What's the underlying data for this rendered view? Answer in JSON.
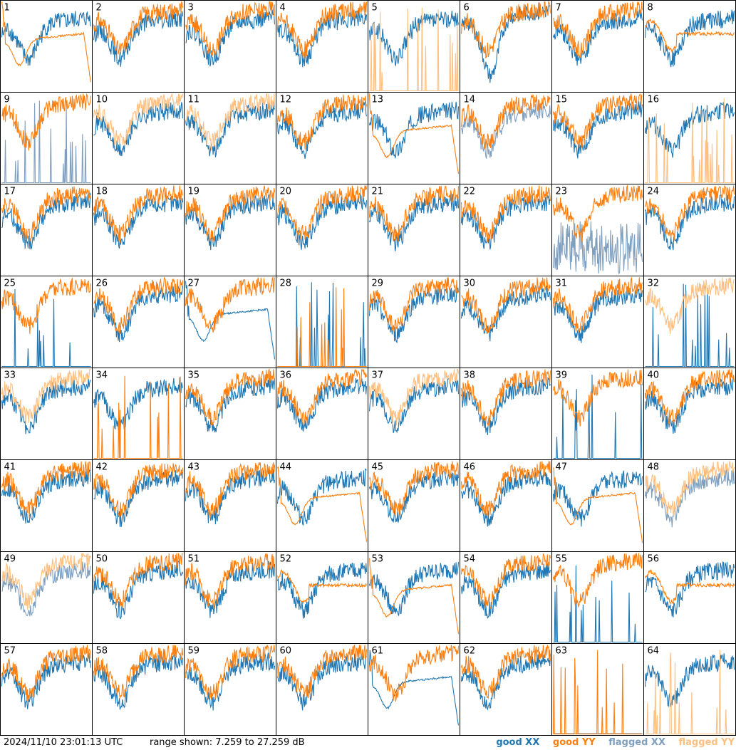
{
  "footer": {
    "timestamp": "2024/11/10 23:01:13 UTC",
    "range_text": "range shown: 7.259 to 27.259 dB"
  },
  "legend": {
    "good_xx": "good XX",
    "good_yy": "good YY",
    "flagged_xx": "flagged XX",
    "flagged_yy": "flagged YY"
  },
  "colors": {
    "good_xx": "#1f77b4",
    "good_yy": "#ff7f0e",
    "flagged_xx": "#7f9fbf",
    "flagged_yy": "#ffbf7f",
    "border": "#000000"
  },
  "chart_data": {
    "type": "line",
    "layout": "grid 8x8 of small-multiple spectra",
    "ylim": [
      7.259,
      27.259
    ],
    "yunit": "dB",
    "panels": [
      {
        "id": "1",
        "xx": "good",
        "yy": "good",
        "yy_shape": "bathtub"
      },
      {
        "id": "2",
        "xx": "good",
        "yy": "good"
      },
      {
        "id": "3",
        "xx": "good",
        "yy": "good"
      },
      {
        "id": "4",
        "xx": "good",
        "yy": "good"
      },
      {
        "id": "5",
        "xx": "good",
        "yy": "flagged",
        "yy_shape": "spikes"
      },
      {
        "id": "6",
        "xx": "good",
        "yy": "good",
        "xx_shape": "deep-dip"
      },
      {
        "id": "7",
        "xx": "good",
        "yy": "good"
      },
      {
        "id": "8",
        "xx": "good",
        "yy": "good",
        "yy_shape": "smooth"
      },
      {
        "id": "9",
        "xx": "flagged",
        "yy": "good",
        "xx_shape": "spikes"
      },
      {
        "id": "10",
        "xx": "good",
        "yy": "flagged"
      },
      {
        "id": "11",
        "xx": "good",
        "yy": "flagged"
      },
      {
        "id": "12",
        "xx": "good",
        "yy": "good"
      },
      {
        "id": "13",
        "xx": "good",
        "yy": "good",
        "yy_shape": "bathtub"
      },
      {
        "id": "14",
        "xx": "flagged",
        "yy": "good"
      },
      {
        "id": "15",
        "xx": "good",
        "yy": "good"
      },
      {
        "id": "16",
        "xx": "good",
        "yy": "flagged",
        "yy_shape": "spikes"
      },
      {
        "id": "17",
        "xx": "good",
        "yy": "good"
      },
      {
        "id": "18",
        "xx": "good",
        "yy": "good"
      },
      {
        "id": "19",
        "xx": "good",
        "yy": "good"
      },
      {
        "id": "20",
        "xx": "good",
        "yy": "good"
      },
      {
        "id": "21",
        "xx": "good",
        "yy": "good"
      },
      {
        "id": "22",
        "xx": "good",
        "yy": "good"
      },
      {
        "id": "23",
        "xx": "flagged",
        "yy": "good",
        "xx_shape": "noisy"
      },
      {
        "id": "24",
        "xx": "good",
        "yy": "good"
      },
      {
        "id": "25",
        "xx": "good",
        "yy": "good",
        "xx_shape": "spikes"
      },
      {
        "id": "26",
        "xx": "good",
        "yy": "good"
      },
      {
        "id": "27",
        "xx": "good",
        "yy": "good",
        "xx_shape": "bathtub"
      },
      {
        "id": "28",
        "xx": "good",
        "yy": "good",
        "xx_shape": "spikes",
        "yy_shape": "spikes"
      },
      {
        "id": "29",
        "xx": "good",
        "yy": "good"
      },
      {
        "id": "30",
        "xx": "good",
        "yy": "good"
      },
      {
        "id": "31",
        "xx": "good",
        "yy": "good"
      },
      {
        "id": "32",
        "xx": "good",
        "yy": "flagged",
        "xx_shape": "spikes"
      },
      {
        "id": "33",
        "xx": "good",
        "yy": "flagged"
      },
      {
        "id": "34",
        "xx": "good",
        "yy": "good",
        "yy_shape": "spikes"
      },
      {
        "id": "35",
        "xx": "good",
        "yy": "good"
      },
      {
        "id": "36",
        "xx": "good",
        "yy": "good"
      },
      {
        "id": "37",
        "xx": "good",
        "yy": "flagged"
      },
      {
        "id": "38",
        "xx": "good",
        "yy": "good"
      },
      {
        "id": "39",
        "xx": "good",
        "yy": "good",
        "xx_shape": "spikes"
      },
      {
        "id": "40",
        "xx": "good",
        "yy": "good"
      },
      {
        "id": "41",
        "xx": "good",
        "yy": "good"
      },
      {
        "id": "42",
        "xx": "good",
        "yy": "good"
      },
      {
        "id": "43",
        "xx": "good",
        "yy": "good"
      },
      {
        "id": "44",
        "xx": "good",
        "yy": "good",
        "yy_shape": "bathtub"
      },
      {
        "id": "45",
        "xx": "good",
        "yy": "good"
      },
      {
        "id": "46",
        "xx": "good",
        "yy": "good"
      },
      {
        "id": "47",
        "xx": "good",
        "yy": "good",
        "yy_shape": "bathtub"
      },
      {
        "id": "48",
        "xx": "flagged",
        "yy": "flagged"
      },
      {
        "id": "49",
        "xx": "flagged",
        "yy": "flagged"
      },
      {
        "id": "50",
        "xx": "good",
        "yy": "good"
      },
      {
        "id": "51",
        "xx": "good",
        "yy": "good"
      },
      {
        "id": "52",
        "xx": "good",
        "yy": "good",
        "yy_shape": "smooth"
      },
      {
        "id": "53",
        "xx": "good",
        "yy": "good",
        "yy_shape": "bathtub"
      },
      {
        "id": "54",
        "xx": "good",
        "yy": "good"
      },
      {
        "id": "55",
        "xx": "good",
        "yy": "good",
        "xx_shape": "spikes"
      },
      {
        "id": "56",
        "xx": "good",
        "yy": "good",
        "yy_shape": "smooth"
      },
      {
        "id": "57",
        "xx": "good",
        "yy": "good"
      },
      {
        "id": "58",
        "xx": "good",
        "yy": "good"
      },
      {
        "id": "59",
        "xx": "good",
        "yy": "good"
      },
      {
        "id": "60",
        "xx": "good",
        "yy": "good"
      },
      {
        "id": "61",
        "xx": "good",
        "yy": "good",
        "xx_shape": "bathtub"
      },
      {
        "id": "62",
        "xx": "good",
        "yy": "good"
      },
      {
        "id": "63",
        "xx": "flagged",
        "yy": "good",
        "xx_shape": "flat-low",
        "yy_shape": "spikes"
      },
      {
        "id": "64",
        "xx": "good",
        "yy": "flagged",
        "yy_shape": "spikes"
      }
    ]
  }
}
